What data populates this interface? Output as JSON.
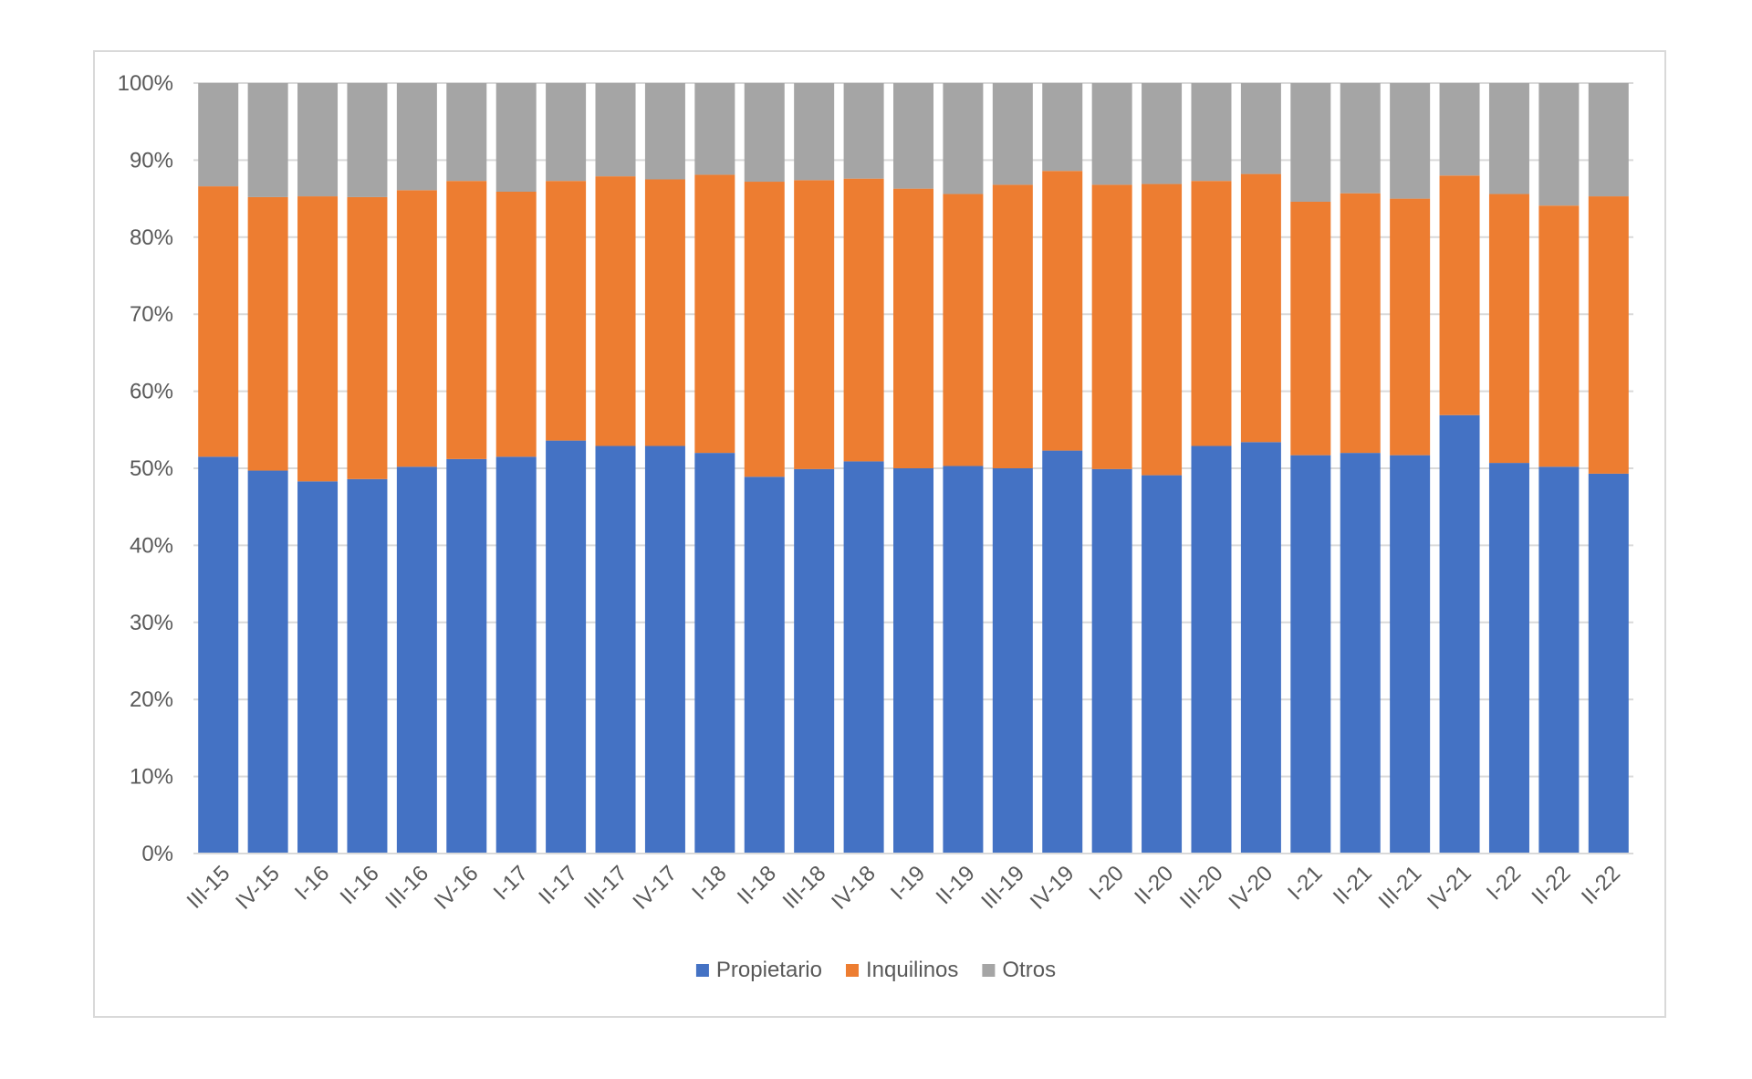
{
  "chart_data": {
    "type": "bar",
    "stacked": true,
    "normalized": true,
    "categories": [
      "III-15",
      "IV-15",
      "I-16",
      "II-16",
      "III-16",
      "IV-16",
      "I-17",
      "II-17",
      "III-17",
      "IV-17",
      "I-18",
      "II-18",
      "III-18",
      "IV-18",
      "I-19",
      "II-19",
      "III-19",
      "IV-19",
      "I-20",
      "II-20",
      "III-20",
      "IV-20",
      "I-21",
      "II-21",
      "III-21",
      "IV-21",
      "I-22",
      "II-22",
      "II-22"
    ],
    "series": [
      {
        "name": "Propietario",
        "color": "#4472c4",
        "values": [
          51.5,
          49.7,
          48.3,
          48.6,
          50.2,
          51.2,
          51.5,
          53.6,
          52.9,
          52.9,
          52.0,
          48.9,
          49.9,
          50.9,
          50.0,
          50.3,
          50.0,
          52.3,
          49.9,
          49.1,
          52.9,
          53.4,
          51.7,
          52.0,
          51.7,
          56.9,
          50.7,
          50.2,
          49.3
        ]
      },
      {
        "name": "Inquilinos",
        "color": "#ed7d31",
        "values": [
          35.1,
          35.5,
          37.0,
          36.6,
          35.9,
          36.1,
          34.4,
          33.7,
          35.0,
          34.6,
          36.1,
          38.3,
          37.5,
          36.7,
          36.3,
          35.3,
          36.8,
          36.3,
          36.9,
          37.8,
          34.4,
          34.8,
          32.9,
          33.7,
          33.3,
          31.1,
          34.9,
          33.9,
          36.0
        ]
      },
      {
        "name": "Otros",
        "color": "#a5a5a5",
        "values": [
          13.4,
          14.8,
          14.7,
          14.8,
          13.9,
          12.7,
          14.1,
          12.7,
          12.1,
          12.5,
          11.9,
          12.8,
          12.6,
          12.4,
          13.7,
          14.4,
          13.2,
          11.4,
          13.2,
          13.1,
          12.7,
          11.8,
          15.4,
          14.3,
          15.0,
          12.0,
          14.4,
          15.9,
          14.7
        ]
      }
    ],
    "y_ticks": [
      "0%",
      "10%",
      "20%",
      "30%",
      "40%",
      "50%",
      "60%",
      "70%",
      "80%",
      "90%",
      "100%"
    ],
    "ylim": [
      0,
      100
    ],
    "grid": true,
    "legend_position": "bottom",
    "title": "",
    "xlabel": "",
    "ylabel": ""
  }
}
